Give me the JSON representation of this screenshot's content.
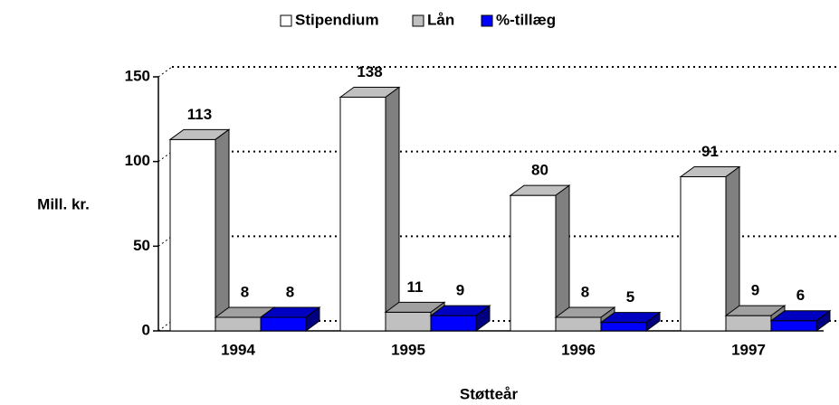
{
  "chart_data": {
    "type": "bar3d",
    "categories": [
      "1994",
      "1995",
      "1996",
      "1997"
    ],
    "series": [
      {
        "name": "Stipendium",
        "color": "#ffffff",
        "values": [
          113,
          138,
          80,
          91
        ]
      },
      {
        "name": "Lån",
        "color": "#c0c0c0",
        "values": [
          8,
          11,
          8,
          9
        ]
      },
      {
        "name": "%-tillæg",
        "color": "#0000ff",
        "values": [
          8,
          9,
          5,
          6
        ]
      }
    ],
    "ylabel": "Mill. kr.",
    "xlabel": "Støtteår",
    "ylim": [
      0,
      150
    ],
    "yticks": [
      0,
      50,
      100,
      150
    ],
    "grid": true,
    "legend": "top"
  }
}
